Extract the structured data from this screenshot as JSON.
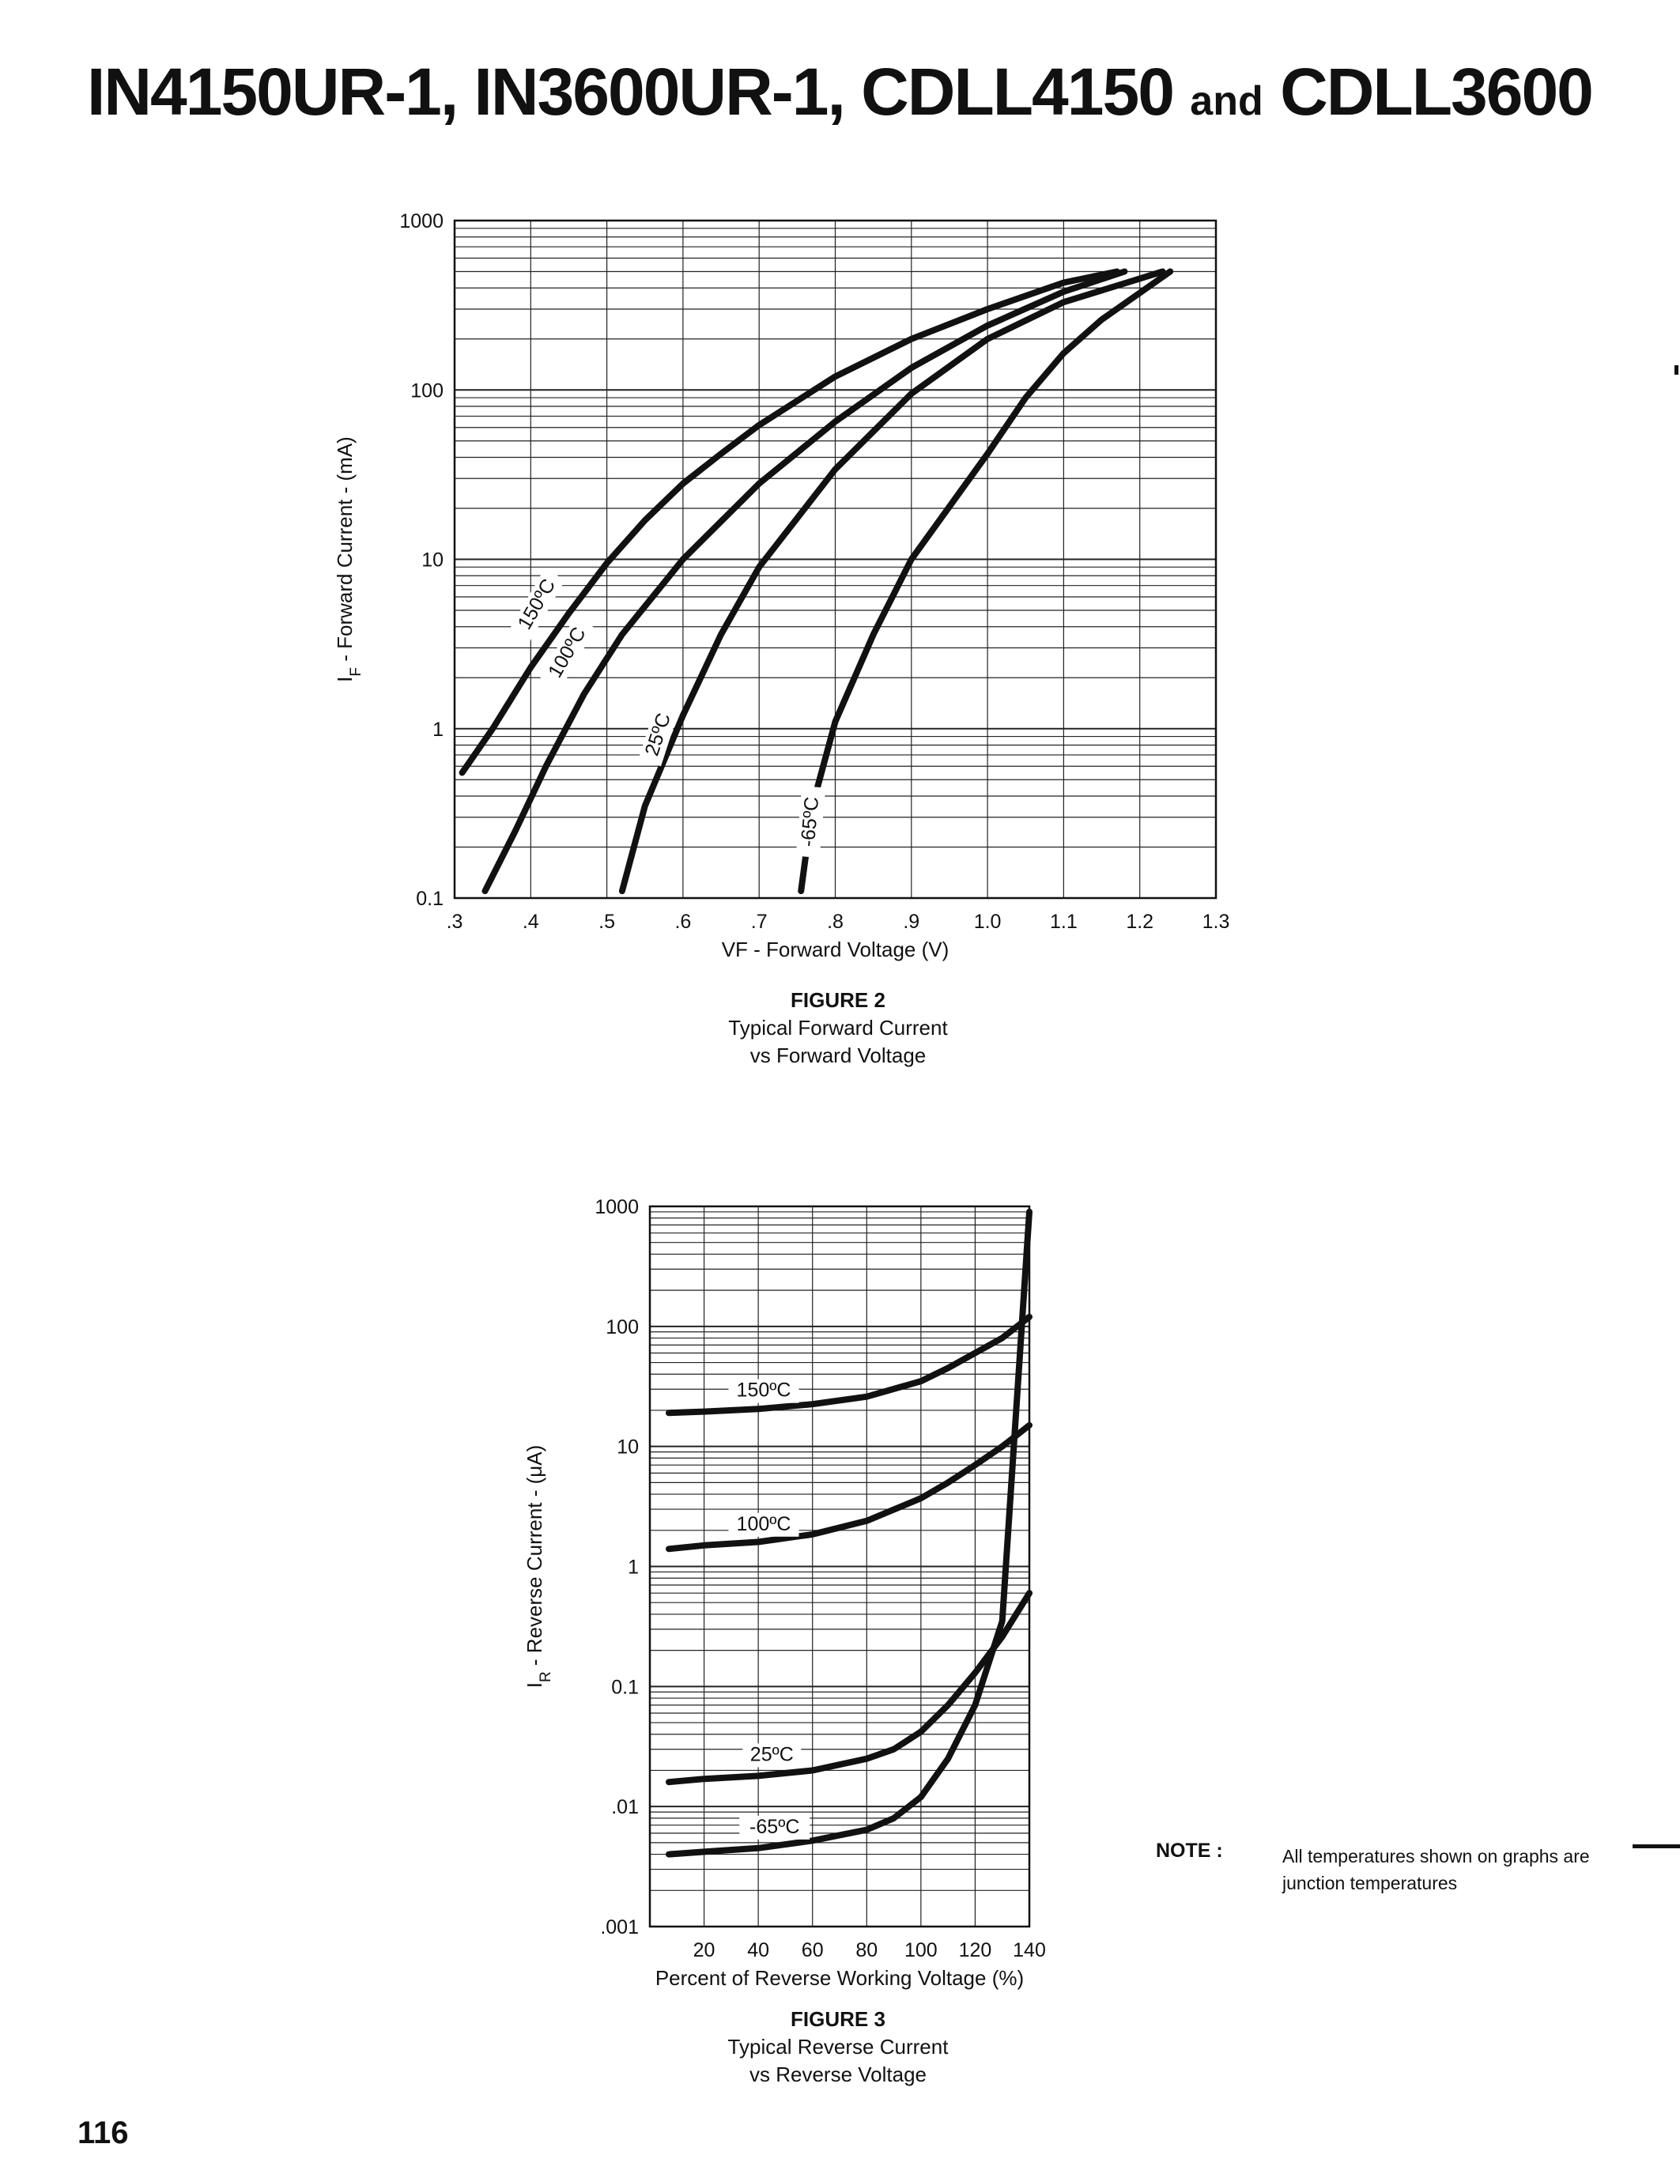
{
  "page": {
    "title_main": "IN4150UR-1, IN3600UR-1, CDLL4150",
    "title_and": "and",
    "title_tail": "CDLL3600",
    "page_number": "116",
    "note_label": "NOTE :",
    "note_text": "All temperatures shown on graphs are junction temperatures"
  },
  "chart_data": [
    {
      "type": "line",
      "title": "FIGURE 2",
      "caption_line1": "Typical Forward Current",
      "caption_line2": "vs Forward Voltage",
      "xlabel": "VF - Forward Voltage (V)",
      "ylabel_main": "I",
      "ylabel_sub": "F",
      "ylabel_rest": " - Forward Current - (mA)",
      "xlim": [
        0.3,
        1.3
      ],
      "ylim": [
        0.1,
        1000
      ],
      "yscale": "log",
      "grid": true,
      "x_ticks": [
        ".3",
        ".4",
        ".5",
        ".6",
        ".7",
        ".8",
        ".9",
        "1.0",
        "1.1",
        "1.2",
        "1.3"
      ],
      "y_ticks": [
        "0.1",
        "1",
        "10",
        "100",
        "1000"
      ],
      "series": [
        {
          "name": "150ºC",
          "x": [
            0.31,
            0.35,
            0.4,
            0.45,
            0.5,
            0.55,
            0.6,
            0.65,
            0.7,
            0.8,
            0.9,
            1.0,
            1.1,
            1.17
          ],
          "y": [
            0.55,
            1.0,
            2.3,
            4.8,
            9.5,
            17,
            28,
            42,
            62,
            120,
            200,
            300,
            430,
            500
          ]
        },
        {
          "name": "100ºC",
          "x": [
            0.34,
            0.38,
            0.42,
            0.47,
            0.52,
            0.6,
            0.7,
            0.8,
            0.9,
            1.0,
            1.1,
            1.18
          ],
          "y": [
            0.11,
            0.25,
            0.6,
            1.6,
            3.6,
            10,
            28,
            65,
            135,
            240,
            380,
            500
          ]
        },
        {
          "name": "25ºC",
          "x": [
            0.52,
            0.55,
            0.6,
            0.65,
            0.7,
            0.8,
            0.9,
            1.0,
            1.1,
            1.23
          ],
          "y": [
            0.11,
            0.35,
            1.2,
            3.6,
            9,
            34,
            95,
            200,
            330,
            500
          ]
        },
        {
          "name": "-65ºC",
          "x": [
            0.755,
            0.77,
            0.8,
            0.85,
            0.9,
            1.0,
            1.05,
            1.1,
            1.15,
            1.24
          ],
          "y": [
            0.11,
            0.35,
            1.1,
            3.6,
            10,
            42,
            90,
            165,
            260,
            500
          ]
        }
      ],
      "label_positions_data": []
    },
    {
      "type": "line",
      "title": "FIGURE 3",
      "caption_line1": "Typical Reverse Current",
      "caption_line2": "vs Reverse Voltage",
      "xlabel": "Percent of Reverse Working Voltage (%)",
      "ylabel_main": "I",
      "ylabel_sub": "R",
      "ylabel_rest": " - Reverse Current - (μA)",
      "xlim": [
        0,
        140
      ],
      "ylim": [
        0.001,
        1000
      ],
      "yscale": "log",
      "grid": true,
      "x_ticks": [
        "20",
        "40",
        "60",
        "80",
        "100",
        "120",
        "140"
      ],
      "y_ticks": [
        ".001",
        ".01",
        "0.1",
        "1",
        "10",
        "100",
        "1000"
      ],
      "series": [
        {
          "name": "150ºC",
          "x": [
            7,
            20,
            40,
            60,
            80,
            100,
            110,
            120,
            130,
            140
          ],
          "y": [
            19,
            19.5,
            20.5,
            22.5,
            26,
            35,
            45,
            60,
            80,
            120
          ]
        },
        {
          "name": "100ºC",
          "x": [
            7,
            20,
            40,
            60,
            80,
            100,
            110,
            120,
            130,
            140
          ],
          "y": [
            1.4,
            1.5,
            1.6,
            1.85,
            2.4,
            3.7,
            5,
            7,
            10,
            15
          ]
        },
        {
          "name": "25ºC",
          "x": [
            7,
            20,
            40,
            60,
            80,
            90,
            100,
            110,
            120,
            130,
            140
          ],
          "y": [
            0.016,
            0.017,
            0.018,
            0.02,
            0.025,
            0.03,
            0.042,
            0.07,
            0.13,
            0.26,
            0.6
          ]
        },
        {
          "name": "-65ºC",
          "x": [
            7,
            20,
            40,
            60,
            80,
            90,
            100,
            110,
            120,
            130,
            140
          ],
          "y": [
            0.004,
            0.0042,
            0.0045,
            0.0052,
            0.0064,
            0.008,
            0.012,
            0.025,
            0.07,
            0.35,
            900
          ]
        }
      ]
    }
  ]
}
